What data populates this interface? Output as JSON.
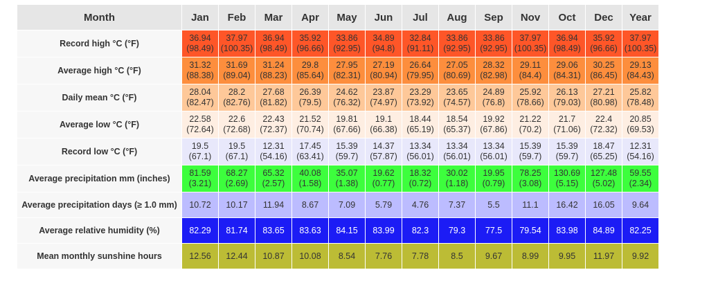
{
  "chart_data": {
    "type": "table",
    "columns": [
      "Month",
      "Jan",
      "Feb",
      "Mar",
      "Apr",
      "May",
      "Jun",
      "Jul",
      "Aug",
      "Sep",
      "Nov",
      "Oct",
      "Dec",
      "Year"
    ],
    "rows": [
      {
        "label": "Record high °C (°F)",
        "color": "#fe5628",
        "values": [
          "36.94",
          "37.97",
          "36.94",
          "35.92",
          "33.86",
          "34.89",
          "32.84",
          "33.86",
          "33.86",
          "37.97",
          "36.94",
          "35.92",
          "37.97"
        ],
        "values_f": [
          "(98.49)",
          "(100.35)",
          "(98.49)",
          "(96.66)",
          "(92.95)",
          "(94.8)",
          "(91.11)",
          "(92.95)",
          "(92.95)",
          "(100.35)",
          "(98.49)",
          "(96.66)",
          "(100.35)"
        ]
      },
      {
        "label": "Average high °C (°F)",
        "color": "#fd8e3d",
        "values": [
          "31.32",
          "31.69",
          "31.24",
          "29.8",
          "27.95",
          "27.19",
          "26.64",
          "27.05",
          "28.32",
          "29.11",
          "29.06",
          "30.25",
          "29.13"
        ],
        "values_f": [
          "(88.38)",
          "(89.04)",
          "(88.23)",
          "(85.64)",
          "(82.31)",
          "(80.94)",
          "(79.95)",
          "(80.69)",
          "(82.98)",
          "(84.4)",
          "(84.31)",
          "(86.45)",
          "(84.43)"
        ]
      },
      {
        "label": "Daily mean °C (°F)",
        "color": "#fec899",
        "values": [
          "28.04",
          "28.2",
          "27.68",
          "26.39",
          "24.62",
          "23.87",
          "23.29",
          "23.65",
          "24.89",
          "25.92",
          "26.13",
          "27.21",
          "25.82"
        ],
        "values_f": [
          "(82.47)",
          "(82.76)",
          "(81.82)",
          "(79.5)",
          "(76.32)",
          "(74.97)",
          "(73.92)",
          "(74.57)",
          "(76.8)",
          "(78.66)",
          "(79.03)",
          "(80.98)",
          "(78.48)"
        ]
      },
      {
        "label": "Average low °C (°F)",
        "color": "#feeee2",
        "values": [
          "22.58",
          "22.6",
          "22.43",
          "21.52",
          "19.81",
          "19.1",
          "18.44",
          "18.54",
          "19.92",
          "21.22",
          "21.7",
          "22.4",
          "20.85"
        ],
        "values_f": [
          "(72.64)",
          "(72.68)",
          "(72.37)",
          "(70.74)",
          "(67.66)",
          "(66.38)",
          "(65.19)",
          "(65.37)",
          "(67.86)",
          "(70.2)",
          "(71.06)",
          "(72.32)",
          "(69.53)"
        ]
      },
      {
        "label": "Record low °C (°F)",
        "color": "#e8e8fb",
        "values": [
          "19.5",
          "19.5",
          "12.31",
          "17.45",
          "15.39",
          "14.37",
          "13.34",
          "13.34",
          "13.34",
          "15.39",
          "15.39",
          "18.47",
          "12.31"
        ],
        "values_f": [
          "(67.1)",
          "(67.1)",
          "(54.16)",
          "(63.41)",
          "(59.7)",
          "(57.87)",
          "(56.01)",
          "(56.01)",
          "(56.01)",
          "(59.7)",
          "(59.7)",
          "(65.25)",
          "(54.16)"
        ]
      },
      {
        "label": "Average precipitation mm (inches)",
        "color": "#3dfe3d",
        "values": [
          "81.59",
          "68.27",
          "65.32",
          "40.08",
          "35.07",
          "19.62",
          "18.32",
          "30.02",
          "19.95",
          "78.25",
          "130.69",
          "127.48",
          "59.55"
        ],
        "values_f": [
          "(3.21)",
          "(2.69)",
          "(2.57)",
          "(1.58)",
          "(1.38)",
          "(0.77)",
          "(0.72)",
          "(1.18)",
          "(0.79)",
          "(3.08)",
          "(5.15)",
          "(5.02)",
          "(2.34)"
        ]
      },
      {
        "label": "Average precipitation days (≥ 1.0 mm)",
        "color": "#bcbcff",
        "values": [
          "10.72",
          "10.17",
          "11.94",
          "8.67",
          "7.09",
          "5.79",
          "4.76",
          "7.37",
          "5.5",
          "11.1",
          "16.42",
          "16.05",
          "9.64"
        ]
      },
      {
        "label": "Average relative humidity (%)",
        "color": "#1c1cf5",
        "text_white": true,
        "values": [
          "82.29",
          "81.74",
          "83.65",
          "83.63",
          "84.15",
          "83.99",
          "82.3",
          "79.3",
          "77.5",
          "79.54",
          "83.98",
          "84.89",
          "82.25"
        ]
      },
      {
        "label": "Mean monthly sunshine hours",
        "color": "#bcbc35",
        "values": [
          "12.56",
          "12.44",
          "10.87",
          "10.08",
          "8.54",
          "7.76",
          "7.78",
          "8.5",
          "9.67",
          "8.99",
          "9.95",
          "11.97",
          "9.92"
        ]
      }
    ]
  }
}
